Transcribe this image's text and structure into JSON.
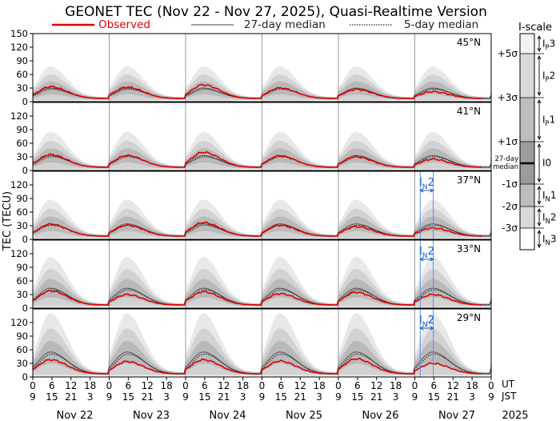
{
  "chart_data": {
    "type": "line",
    "title": "GEONET TEC (Nov 22 - Nov 27, 2025), Quasi-Realtime Version",
    "ylabel": "TEC (TECU)",
    "ylim": [
      0,
      150
    ],
    "yticks": [
      0,
      30,
      60,
      90,
      120,
      150
    ],
    "yticks_lower": [
      0,
      30,
      60,
      90,
      120
    ],
    "legend": [
      {
        "name": "Observed",
        "color": "#e00000",
        "style": "solid"
      },
      {
        "name": "27-day median",
        "color": "#808080",
        "style": "solid"
      },
      {
        "name": "5-day median",
        "color": "#202020",
        "style": "dotted"
      }
    ],
    "x_days": 6,
    "hour_labels_ut": [
      "0",
      "6",
      "12",
      "18",
      "0",
      "6",
      "12",
      "18",
      "0",
      "6",
      "12",
      "18",
      "0",
      "6",
      "12",
      "18",
      "0",
      "6",
      "12",
      "18",
      "0",
      "6",
      "12",
      "18",
      "0"
    ],
    "hour_labels_jst": [
      "9",
      "15",
      "21",
      "3",
      "9",
      "15",
      "21",
      "3",
      "9",
      "15",
      "21",
      "3",
      "9",
      "15",
      "21",
      "3",
      "9",
      "15",
      "21",
      "3",
      "9",
      "15",
      "21",
      "3",
      "9"
    ],
    "ut_label": "UT",
    "jst_label": "JST",
    "dates": [
      "Nov 22",
      "Nov 23",
      "Nov 24",
      "Nov 25",
      "Nov 26",
      "Nov 27"
    ],
    "year": "2025",
    "panels": [
      {
        "lat": "45°N",
        "median_peak": 30,
        "observed_peak": [
          33,
          32,
          37,
          30,
          27,
          22
        ],
        "marker": ""
      },
      {
        "lat": "41°N",
        "median_peak": 33,
        "observed_peak": [
          35,
          33,
          40,
          32,
          30,
          25
        ],
        "marker": ""
      },
      {
        "lat": "37°N",
        "median_peak": 34,
        "observed_peak": [
          33,
          31,
          37,
          31,
          28,
          25
        ],
        "marker": "IN2"
      },
      {
        "lat": "33°N",
        "median_peak": 44,
        "observed_peak": [
          38,
          30,
          36,
          32,
          35,
          30
        ],
        "marker": "IN2"
      },
      {
        "lat": "29°N",
        "median_peak": 55,
        "observed_peak": [
          38,
          34,
          38,
          35,
          40,
          30
        ],
        "marker": "IN2"
      }
    ],
    "marker_label": {
      "base": "I",
      "sub": "N",
      "num": "2"
    },
    "iscale": {
      "title": "I-scale",
      "sigma_labels": [
        "+5σ",
        "+3σ",
        "+1σ",
        "-1σ",
        "-2σ",
        "-3σ"
      ],
      "median_label_1": "27-day",
      "median_label_2": "median",
      "classes": [
        {
          "base": "I",
          "sub": "P",
          "num": "3"
        },
        {
          "base": "I",
          "sub": "P",
          "num": "2"
        },
        {
          "base": "I",
          "sub": "P",
          "num": "1"
        },
        {
          "base": "I",
          "sub": "",
          "num": "0"
        },
        {
          "base": "I",
          "sub": "N",
          "num": "1"
        },
        {
          "base": "I",
          "sub": "N",
          "num": "2"
        },
        {
          "base": "I",
          "sub": "N",
          "num": "3"
        }
      ]
    }
  }
}
